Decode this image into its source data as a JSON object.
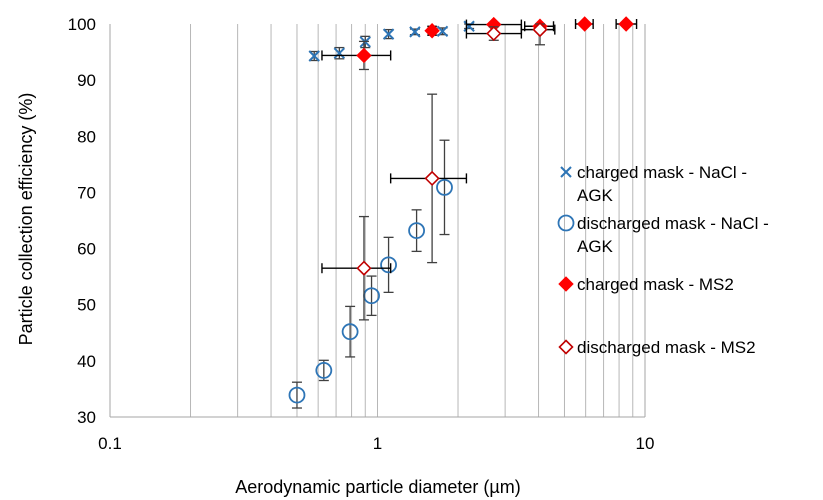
{
  "chart_data": {
    "type": "scatter",
    "title": "",
    "xlabel": "Aerodynamic particle diameter (µm)",
    "ylabel": "Particle collection efficiency (%)",
    "xscale": "log",
    "xlim": [
      0.1,
      10
    ],
    "ylim": [
      30,
      100
    ],
    "x_ticks": [
      0.1,
      1,
      10
    ],
    "x_tick_labels": [
      "0.1",
      "1",
      "10"
    ],
    "y_ticks": [
      30,
      40,
      50,
      60,
      70,
      80,
      90,
      100
    ],
    "y_tick_labels": [
      "30",
      "40",
      "50",
      "60",
      "70",
      "80",
      "90",
      "100"
    ],
    "grid": "vertical minor and major (log)",
    "legend_position": "right",
    "series": [
      {
        "name": "charged mask - NaCl - AGK",
        "legend_lines": [
          "charged mask - NaCl -",
          "AGK"
        ],
        "marker": "x",
        "color": "#2e75b6",
        "points": [
          {
            "x": 0.58,
            "y": 94.3,
            "yerr": 0.8
          },
          {
            "x": 0.72,
            "y": 94.8,
            "yerr": 1.0
          },
          {
            "x": 0.9,
            "y": 96.8,
            "yerr": 1.0
          },
          {
            "x": 1.1,
            "y": 98.2,
            "yerr": 0.8
          },
          {
            "x": 1.38,
            "y": 98.6,
            "yerr": 0.5
          },
          {
            "x": 1.75,
            "y": 98.7,
            "yerr": 0.6
          },
          {
            "x": 2.2,
            "y": 99.6,
            "yerr": 0.4
          }
        ]
      },
      {
        "name": "discharged mask - NaCl - AGK",
        "legend_lines": [
          "discharged mask - NaCl -",
          "AGK"
        ],
        "marker": "circle-open",
        "color": "#2e75b6",
        "points": [
          {
            "x": 0.5,
            "y": 33.9,
            "yerr": 2.3
          },
          {
            "x": 0.63,
            "y": 38.3,
            "yerr": 1.8
          },
          {
            "x": 0.79,
            "y": 45.2,
            "yerr": 4.5
          },
          {
            "x": 0.95,
            "y": 51.6,
            "yerr": 3.5
          },
          {
            "x": 1.1,
            "y": 57.1,
            "yerr": 4.9
          },
          {
            "x": 1.4,
            "y": 63.2,
            "yerr": 3.7
          },
          {
            "x": 1.78,
            "y": 70.9,
            "yerr": 8.4
          }
        ]
      },
      {
        "name": "charged mask - MS2",
        "legend_lines": [
          "charged mask - MS2"
        ],
        "marker": "diamond-filled",
        "color": "#ff0000",
        "points": [
          {
            "x": 0.89,
            "y": 94.4,
            "yerr": 2.5,
            "xerr_low": 0.62,
            "xerr_high": 1.12
          },
          {
            "x": 1.6,
            "y": 98.8,
            "yerr": 0.8,
            "xerr_low": 1.55,
            "xerr_high": 1.65
          },
          {
            "x": 2.72,
            "y": 99.9,
            "yerr": 0.3,
            "xerr_low": 2.15,
            "xerr_high": 3.45
          },
          {
            "x": 4.05,
            "y": 99.6,
            "yerr": 0.6,
            "xerr_low": 3.55,
            "xerr_high": 4.55
          },
          {
            "x": 5.95,
            "y": 100.0,
            "yerr": 0.1,
            "xerr_low": 5.5,
            "xerr_high": 6.4
          },
          {
            "x": 8.5,
            "y": 100.0,
            "yerr": 0.1,
            "xerr_low": 7.8,
            "xerr_high": 9.3
          }
        ]
      },
      {
        "name": "discharged mask - MS2",
        "legend_lines": [
          "discharged mask - MS2"
        ],
        "marker": "diamond-open",
        "color": "#c00000",
        "points": [
          {
            "x": 0.89,
            "y": 56.5,
            "yerr": 9.2,
            "xerr_low": 0.62,
            "xerr_high": 1.12
          },
          {
            "x": 1.6,
            "y": 72.5,
            "yerr": 15.0,
            "xerr_low": 1.12,
            "xerr_high": 2.15
          },
          {
            "x": 2.72,
            "y": 98.3,
            "yerr": 1.2,
            "xerr_low": 2.15,
            "xerr_high": 3.45
          },
          {
            "x": 4.05,
            "y": 99.0,
            "yerr": 2.7,
            "xerr_low": 3.45,
            "xerr_high": 4.6
          }
        ]
      }
    ]
  }
}
